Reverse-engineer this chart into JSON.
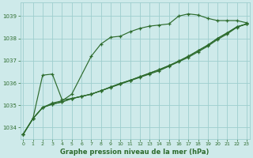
{
  "xlabel": "Graphe pression niveau de la mer (hPa)",
  "background_color": "#ceeaea",
  "grid_color": "#9ecece",
  "line_color": "#2d6b2d",
  "x_ticks": [
    0,
    1,
    2,
    3,
    4,
    5,
    6,
    7,
    8,
    9,
    10,
    11,
    12,
    13,
    14,
    15,
    16,
    17,
    18,
    19,
    20,
    21,
    22,
    23
  ],
  "ylim": [
    1033.5,
    1039.6
  ],
  "xlim": [
    -0.3,
    23.3
  ],
  "yticks": [
    1034,
    1035,
    1036,
    1037,
    1038,
    1039
  ],
  "series": [
    {
      "x": [
        0,
        1,
        2,
        3,
        4,
        5,
        7,
        8,
        9,
        10,
        11,
        12,
        13,
        14,
        15,
        16,
        17,
        18,
        19,
        20,
        21,
        22,
        23
      ],
      "y": [
        1033.7,
        1034.4,
        1034.9,
        1035.1,
        1035.2,
        1035.5,
        1037.2,
        1037.75,
        1038.05,
        1038.1,
        1038.3,
        1038.45,
        1038.55,
        1038.6,
        1038.65,
        1039.0,
        1039.1,
        1039.05,
        1038.9,
        1038.8,
        1038.8,
        1038.8,
        1038.7
      ]
    },
    {
      "x": [
        0,
        1,
        2,
        3,
        4,
        5,
        6,
        7,
        8,
        9,
        10,
        11,
        12,
        13,
        14,
        15,
        16,
        17,
        18,
        19,
        20,
        21,
        22,
        23
      ],
      "y": [
        1033.7,
        1034.4,
        1036.35,
        1036.4,
        1035.25,
        1035.3,
        1035.4,
        1035.5,
        1035.65,
        1035.8,
        1035.95,
        1036.1,
        1036.25,
        1036.4,
        1036.55,
        1036.75,
        1036.95,
        1037.15,
        1037.4,
        1037.65,
        1037.95,
        1038.2,
        1038.5,
        1038.65
      ]
    },
    {
      "x": [
        0,
        1,
        2,
        3,
        4,
        5,
        6,
        7,
        8,
        9,
        10,
        11,
        12,
        13,
        14,
        15,
        16,
        17,
        18,
        19,
        20,
        21,
        22,
        23
      ],
      "y": [
        1033.7,
        1034.4,
        1034.9,
        1035.05,
        1035.15,
        1035.3,
        1035.4,
        1035.5,
        1035.65,
        1035.82,
        1035.98,
        1036.12,
        1036.28,
        1036.44,
        1036.6,
        1036.78,
        1036.98,
        1037.2,
        1037.45,
        1037.7,
        1038.0,
        1038.25,
        1038.52,
        1038.65
      ]
    },
    {
      "x": [
        0,
        1,
        2,
        3,
        4,
        5,
        6,
        7,
        8,
        9,
        10,
        11,
        12,
        13,
        14,
        15,
        16,
        17,
        18,
        19,
        20,
        21,
        22,
        23
      ],
      "y": [
        1033.7,
        1034.4,
        1034.9,
        1035.05,
        1035.15,
        1035.3,
        1035.4,
        1035.5,
        1035.65,
        1035.82,
        1035.98,
        1036.12,
        1036.28,
        1036.44,
        1036.6,
        1036.78,
        1036.98,
        1037.2,
        1037.45,
        1037.7,
        1038.0,
        1038.25,
        1038.52,
        1038.65
      ]
    }
  ]
}
